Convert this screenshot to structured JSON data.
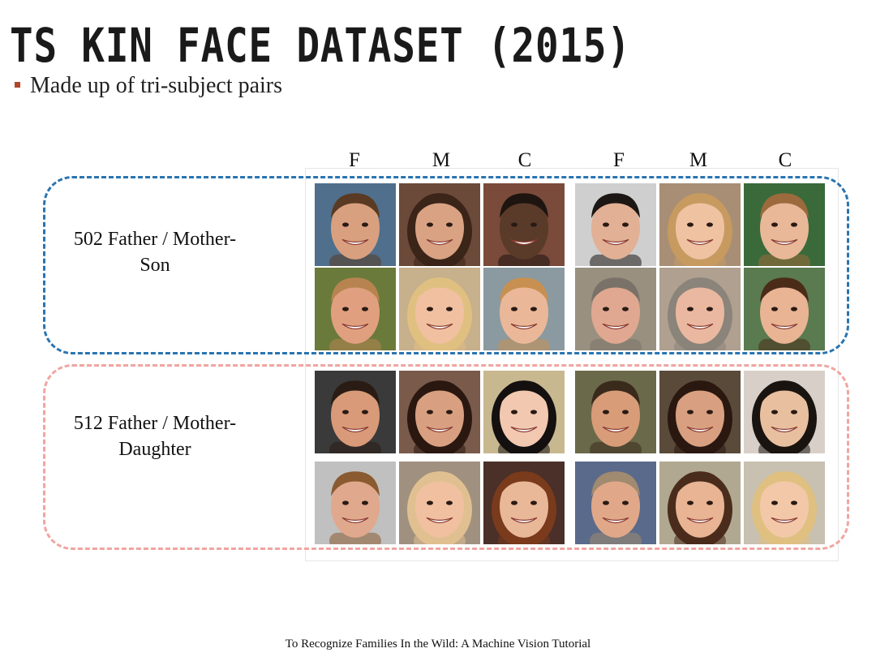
{
  "slide": {
    "title": "TS KIN FACE DATASET (2015)",
    "bullet": "Made up of tri-subject pairs",
    "footer": "To Recognize Families In the Wild: A Machine Vision Tutorial"
  },
  "columns": [
    "F",
    "M",
    "C",
    "F",
    "M",
    "C"
  ],
  "groups": [
    {
      "line1": "502 Father / Mother-",
      "line2": "Son",
      "box_color": "#2a74b0"
    },
    {
      "line1": "512 Father / Mother-",
      "line2": "Daughter",
      "box_color": "#f0a5a0"
    }
  ],
  "colors": {
    "bullet": "#b3452b",
    "son_box": "#2a74b0",
    "daughter_box": "#f0a5a0"
  },
  "photos": [
    {
      "role": "father",
      "bg": "#4f6f8c",
      "skin": "#d9a07f",
      "hair": "#5a3a22"
    },
    {
      "role": "mother",
      "bg": "#6b4a3a",
      "skin": "#d8a283",
      "hair": "#3b2418"
    },
    {
      "role": "son",
      "bg": "#7a4a3a",
      "skin": "#5a3a28",
      "hair": "#1e1410"
    },
    {
      "role": "father",
      "bg": "#cfcfcf",
      "skin": "#e2b094",
      "hair": "#1c1614"
    },
    {
      "role": "mother",
      "bg": "#a88e74",
      "skin": "#efc2a2",
      "hair": "#c79a60"
    },
    {
      "role": "son",
      "bg": "#3a6a3a",
      "skin": "#e8b898",
      "hair": "#9c6a3c"
    },
    {
      "role": "father",
      "bg": "#6a7a3a",
      "skin": "#e0a080",
      "hair": "#b78450"
    },
    {
      "role": "mother",
      "bg": "#c7b08c",
      "skin": "#f0c0a0",
      "hair": "#e0c080"
    },
    {
      "role": "son",
      "bg": "#8a9aa0",
      "skin": "#eab898",
      "hair": "#c89050"
    },
    {
      "role": "father",
      "bg": "#9a9080",
      "skin": "#e0a890",
      "hair": "#7a7268"
    },
    {
      "role": "mother",
      "bg": "#b0a090",
      "skin": "#eab8a0",
      "hair": "#8a847a"
    },
    {
      "role": "son",
      "bg": "#5a7a50",
      "skin": "#e8b494",
      "hair": "#4a2c18"
    },
    {
      "role": "father",
      "bg": "#3a3a3a",
      "skin": "#d89a78",
      "hair": "#2a1c14"
    },
    {
      "role": "mother",
      "bg": "#7a5a4a",
      "skin": "#d8a080",
      "hair": "#2a1810"
    },
    {
      "role": "daughter",
      "bg": "#c8b890",
      "skin": "#f2c8b0",
      "hair": "#141010"
    },
    {
      "role": "father",
      "bg": "#6a6a4a",
      "skin": "#d89c78",
      "hair": "#3a2a1c"
    },
    {
      "role": "mother",
      "bg": "#5a4a3a",
      "skin": "#d8a080",
      "hair": "#2a1810"
    },
    {
      "role": "daughter",
      "bg": "#d8d0c8",
      "skin": "#e8c0a0",
      "hair": "#1a1410"
    },
    {
      "role": "father",
      "bg": "#c0c0c0",
      "skin": "#e0a88c",
      "hair": "#8a5a30"
    },
    {
      "role": "mother",
      "bg": "#a09080",
      "skin": "#f0c0a0",
      "hair": "#e0c090"
    },
    {
      "role": "daughter",
      "bg": "#4a3028",
      "skin": "#e8b898",
      "hair": "#7a3a1c"
    },
    {
      "role": "father",
      "bg": "#5a6a8a",
      "skin": "#e0a888",
      "hair": "#a08a70"
    },
    {
      "role": "mother",
      "bg": "#b0a890",
      "skin": "#e8b494",
      "hair": "#4a2c1c"
    },
    {
      "role": "daughter",
      "bg": "#c8c0b0",
      "skin": "#f2c8a8",
      "hair": "#e0c080"
    }
  ]
}
